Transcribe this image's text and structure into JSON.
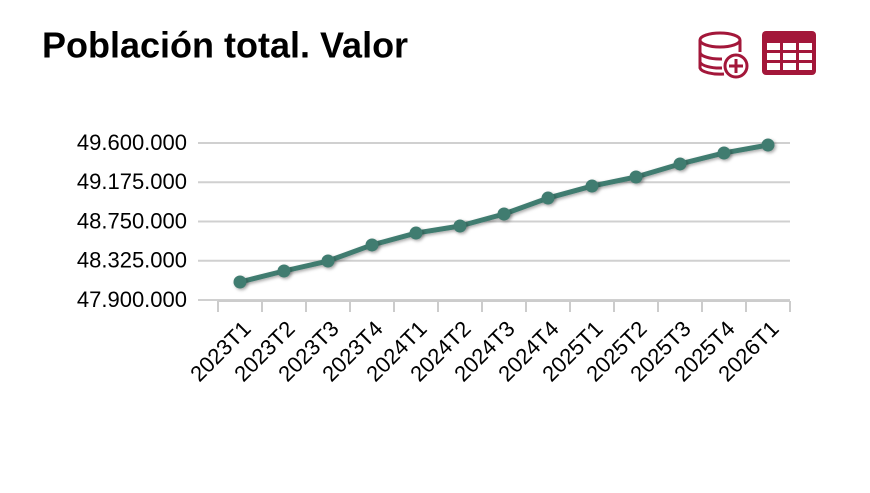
{
  "chart_data": {
    "type": "line",
    "title": "Población total. Valor",
    "categories": [
      "2023T1",
      "2023T2",
      "2023T3",
      "2023T4",
      "2024T1",
      "2024T2",
      "2024T3",
      "2024T4",
      "2025T1",
      "2025T2",
      "2025T3",
      "2025T4",
      "2026T1"
    ],
    "series": [
      {
        "name": "Población total",
        "color": "#3f7b6f",
        "values": [
          48095000,
          48214000,
          48322000,
          48496000,
          48625000,
          48701000,
          48831000,
          49004000,
          49134000,
          49232000,
          49373000,
          49492000,
          49578000
        ]
      }
    ],
    "ylim": [
      47900000,
      49600000
    ],
    "yticks": [
      {
        "value": 47900000,
        "label": "47.900.000"
      },
      {
        "value": 48325000,
        "label": "48.325.000"
      },
      {
        "value": 48750000,
        "label": "48.750.000"
      },
      {
        "value": 49175000,
        "label": "49.175.000"
      },
      {
        "value": 49600000,
        "label": "49.600.000"
      }
    ],
    "grid": true
  }
}
